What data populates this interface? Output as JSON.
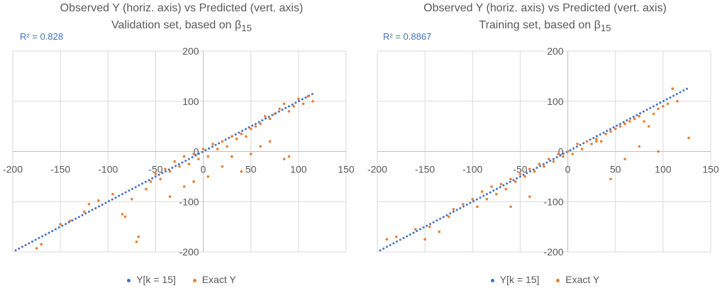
{
  "colors": {
    "predicted": "#4472C4",
    "exact": "#ED7D31",
    "grid": "#D9D9D9",
    "axis": "#BFBFBF",
    "text": "#595959"
  },
  "legend": {
    "series_a": "Y[k = 15]",
    "series_b": "Exact Y"
  },
  "chart_data": [
    {
      "type": "scatter",
      "title": "Observed Y (horiz. axis) vs Predicted (vert. axis)",
      "subtitle_prefix": "Validation set, based on β",
      "subtitle_sub": "15",
      "annotation": "R² = 0.828",
      "xlim": [
        -200,
        150
      ],
      "ylim": [
        -200,
        200
      ],
      "xticks": [
        -200,
        -150,
        -100,
        -50,
        0,
        50,
        100,
        150
      ],
      "yticks": [
        -200,
        -100,
        0,
        100,
        200
      ],
      "grid": true,
      "legend_position": "bottom",
      "series": [
        {
          "name": "Y[k = 15]",
          "marker": "dot",
          "x_range": [
            -200,
            115
          ],
          "relation": "y = x (diagonal line of predicted values)"
        },
        {
          "name": "Exact Y",
          "marker": "dot",
          "points": [
            [
              -175,
              -193
            ],
            [
              -170,
              -185
            ],
            [
              -150,
              -145
            ],
            [
              -140,
              -138
            ],
            [
              -125,
              -120
            ],
            [
              -120,
              -105
            ],
            [
              -110,
              -98
            ],
            [
              -95,
              -85
            ],
            [
              -85,
              -125
            ],
            [
              -82,
              -130
            ],
            [
              -75,
              -95
            ],
            [
              -70,
              -180
            ],
            [
              -68,
              -170
            ],
            [
              -60,
              -75
            ],
            [
              -55,
              -60
            ],
            [
              -50,
              -45
            ],
            [
              -45,
              -55
            ],
            [
              -40,
              -35
            ],
            [
              -35,
              -40
            ],
            [
              -30,
              -20
            ],
            [
              -25,
              -30
            ],
            [
              -20,
              -10
            ],
            [
              -15,
              -25
            ],
            [
              -10,
              -5
            ],
            [
              -5,
              -15
            ],
            [
              0,
              5
            ],
            [
              5,
              -10
            ],
            [
              10,
              15
            ],
            [
              15,
              5
            ],
            [
              20,
              20
            ],
            [
              25,
              10
            ],
            [
              30,
              30
            ],
            [
              35,
              25
            ],
            [
              40,
              35
            ],
            [
              45,
              30
            ],
            [
              50,
              45
            ],
            [
              55,
              50
            ],
            [
              60,
              55
            ],
            [
              65,
              70
            ],
            [
              70,
              65
            ],
            [
              75,
              75
            ],
            [
              80,
              85
            ],
            [
              85,
              95
            ],
            [
              90,
              80
            ],
            [
              95,
              90
            ],
            [
              100,
              105
            ],
            [
              105,
              95
            ],
            [
              110,
              110
            ],
            [
              115,
              100
            ],
            [
              -35,
              -90
            ],
            [
              -20,
              -70
            ],
            [
              -10,
              -60
            ],
            [
              5,
              -50
            ],
            [
              20,
              -30
            ],
            [
              30,
              -10
            ],
            [
              40,
              -40
            ],
            [
              50,
              -5
            ],
            [
              60,
              10
            ],
            [
              70,
              20
            ],
            [
              85,
              -15
            ],
            [
              90,
              -10
            ]
          ]
        }
      ]
    },
    {
      "type": "scatter",
      "title": "Observed Y (horiz. axis) vs Predicted (vert. axis)",
      "subtitle_prefix": "Training set, based on β",
      "subtitle_sub": "15",
      "annotation": "R² = 0.8867",
      "xlim": [
        -200,
        150
      ],
      "ylim": [
        -200,
        200
      ],
      "xticks": [
        -200,
        -150,
        -100,
        -50,
        0,
        50,
        100,
        150
      ],
      "yticks": [
        -200,
        -100,
        0,
        100,
        200
      ],
      "grid": true,
      "legend_position": "bottom",
      "series": [
        {
          "name": "Y[k = 15]",
          "marker": "dot",
          "x_range": [
            -200,
            127
          ],
          "relation": "y = x (diagonal line of predicted values)"
        },
        {
          "name": "Exact Y",
          "marker": "dot",
          "points": [
            [
              -190,
              -175
            ],
            [
              -180,
              -170
            ],
            [
              -160,
              -155
            ],
            [
              -150,
              -175
            ],
            [
              -145,
              -150
            ],
            [
              -135,
              -160
            ],
            [
              -125,
              -130
            ],
            [
              -120,
              -115
            ],
            [
              -110,
              -105
            ],
            [
              -100,
              -95
            ],
            [
              -95,
              -110
            ],
            [
              -90,
              -80
            ],
            [
              -85,
              -95
            ],
            [
              -80,
              -70
            ],
            [
              -75,
              -85
            ],
            [
              -70,
              -65
            ],
            [
              -65,
              -75
            ],
            [
              -60,
              -55
            ],
            [
              -55,
              -60
            ],
            [
              -50,
              -45
            ],
            [
              -45,
              -50
            ],
            [
              -40,
              -35
            ],
            [
              -35,
              -40
            ],
            [
              -30,
              -25
            ],
            [
              -25,
              -30
            ],
            [
              -20,
              -15
            ],
            [
              -15,
              -20
            ],
            [
              -10,
              -5
            ],
            [
              -5,
              -10
            ],
            [
              0,
              0
            ],
            [
              5,
              -5
            ],
            [
              10,
              15
            ],
            [
              15,
              5
            ],
            [
              20,
              20
            ],
            [
              25,
              15
            ],
            [
              30,
              25
            ],
            [
              35,
              20
            ],
            [
              40,
              35
            ],
            [
              45,
              40
            ],
            [
              50,
              45
            ],
            [
              55,
              50
            ],
            [
              60,
              55
            ],
            [
              65,
              60
            ],
            [
              70,
              65
            ],
            [
              75,
              70
            ],
            [
              80,
              60
            ],
            [
              85,
              50
            ],
            [
              90,
              75
            ],
            [
              95,
              85
            ],
            [
              100,
              90
            ],
            [
              105,
              95
            ],
            [
              110,
              125
            ],
            [
              115,
              100
            ],
            [
              127,
              27
            ],
            [
              75,
              10
            ],
            [
              95,
              0
            ],
            [
              60,
              -15
            ],
            [
              45,
              -55
            ],
            [
              30,
              20
            ],
            [
              -60,
              -110
            ],
            [
              -40,
              -90
            ]
          ]
        }
      ]
    }
  ]
}
